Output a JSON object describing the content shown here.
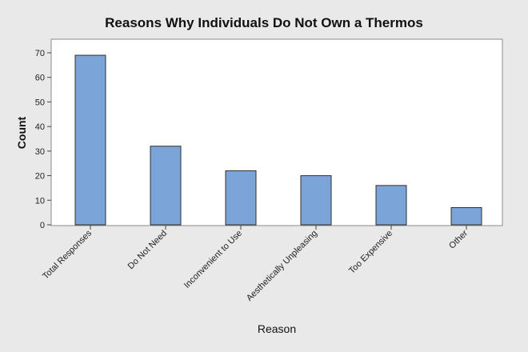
{
  "chart_data": {
    "type": "bar",
    "title": "Reasons Why Individuals Do Not Own a Thermos",
    "xlabel": "Reason",
    "ylabel": "Count",
    "categories": [
      "Total Responses",
      "Do Not Need",
      "Inconvenient to Use",
      "Aesthetically Unpleasing",
      "Too Expensive",
      "Other"
    ],
    "values": [
      69,
      32,
      22,
      20,
      16,
      7
    ],
    "ylim": [
      0,
      73
    ],
    "yticks": [
      0,
      10,
      20,
      30,
      40,
      50,
      60,
      70
    ],
    "grid": false,
    "bar_color": "#7ba4d8",
    "bar_edge_color": "#2f2f2f",
    "plot_background": "#ffffff",
    "figure_background": "#e9e9e9"
  }
}
